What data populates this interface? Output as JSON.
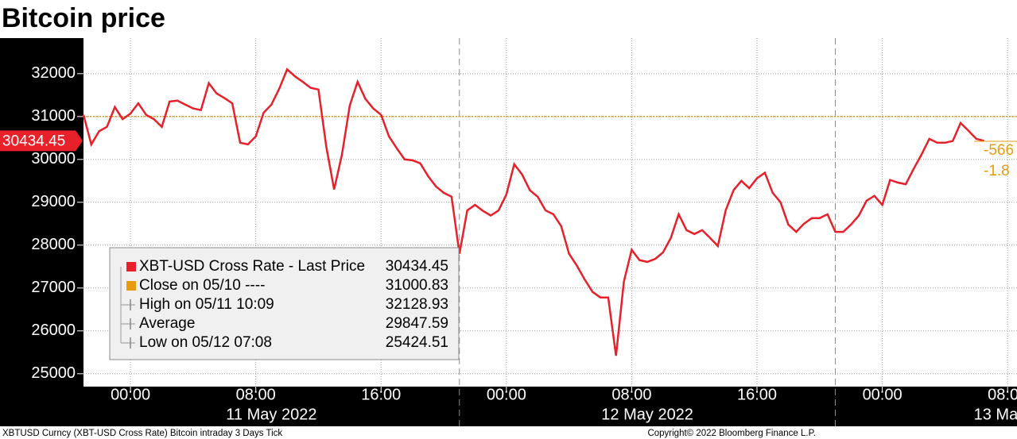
{
  "chart_data": {
    "type": "line",
    "title": "Bitcoin price",
    "x": [
      "05/10 21:00",
      "05/10 21:30",
      "05/10 22:00",
      "05/10 22:30",
      "05/10 23:00",
      "05/10 23:30",
      "05/11 00:00",
      "05/11 00:30",
      "05/11 01:00",
      "05/11 01:30",
      "05/11 02:00",
      "05/11 02:30",
      "05/11 03:00",
      "05/11 03:30",
      "05/11 04:00",
      "05/11 04:30",
      "05/11 05:00",
      "05/11 05:30",
      "05/11 06:00",
      "05/11 06:30",
      "05/11 07:00",
      "05/11 07:30",
      "05/11 08:00",
      "05/11 08:30",
      "05/11 09:00",
      "05/11 09:30",
      "05/11 10:00",
      "05/11 10:30",
      "05/11 11:00",
      "05/11 11:30",
      "05/11 12:00",
      "05/11 12:30",
      "05/11 13:00",
      "05/11 13:30",
      "05/11 14:00",
      "05/11 14:30",
      "05/11 15:00",
      "05/11 15:30",
      "05/11 16:00",
      "05/11 16:30",
      "05/11 17:00",
      "05/11 17:30",
      "05/11 18:00",
      "05/11 18:30",
      "05/11 19:00",
      "05/11 19:30",
      "05/11 20:00",
      "05/11 20:30",
      "05/11 21:00",
      "05/11 21:30",
      "05/11 22:00",
      "05/11 22:30",
      "05/11 23:00",
      "05/11 23:30",
      "05/12 00:00",
      "05/12 00:30",
      "05/12 01:00",
      "05/12 01:30",
      "05/12 02:00",
      "05/12 02:30",
      "05/12 03:00",
      "05/12 03:30",
      "05/12 04:00",
      "05/12 04:30",
      "05/12 05:00",
      "05/12 05:30",
      "05/12 06:00",
      "05/12 06:30",
      "05/12 07:00",
      "05/12 07:30",
      "05/12 08:00",
      "05/12 08:30",
      "05/12 09:00",
      "05/12 09:30",
      "05/12 10:00",
      "05/12 10:30",
      "05/12 11:00",
      "05/12 11:30",
      "05/12 12:00",
      "05/12 12:30",
      "05/12 13:00",
      "05/12 13:30",
      "05/12 14:00",
      "05/12 14:30",
      "05/12 15:00",
      "05/12 15:30",
      "05/12 16:00",
      "05/12 16:30",
      "05/12 17:00",
      "05/12 17:30",
      "05/12 18:00",
      "05/12 18:30",
      "05/12 19:00",
      "05/12 19:30",
      "05/12 20:00",
      "05/12 20:30",
      "05/12 21:00",
      "05/12 21:30",
      "05/12 22:00",
      "05/12 22:30",
      "05/12 23:00",
      "05/12 23:30",
      "05/13 00:00",
      "05/13 00:30",
      "05/13 01:00",
      "05/13 01:30",
      "05/13 02:00",
      "05/13 02:30",
      "05/13 03:00",
      "05/13 03:30",
      "05/13 04:00",
      "05/13 04:30",
      "05/13 05:00",
      "05/13 05:30",
      "05/13 06:00",
      "05/13 06:30"
    ],
    "series": [
      {
        "name": "XBT-USD Cross Rate - Last Price",
        "color": "#e8202a",
        "values": [
          31040,
          30350,
          30660,
          30760,
          31220,
          30940,
          31070,
          31310,
          31040,
          30940,
          30760,
          31350,
          31370,
          31280,
          31190,
          31150,
          31780,
          31540,
          31430,
          31310,
          30390,
          30350,
          30540,
          31090,
          31280,
          31650,
          32100,
          31940,
          31810,
          31670,
          31630,
          30300,
          29300,
          30110,
          31260,
          31810,
          31410,
          31190,
          31040,
          30540,
          30260,
          30000,
          29980,
          29910,
          29610,
          29370,
          29220,
          29130,
          27800,
          28810,
          28940,
          28800,
          28690,
          28810,
          29180,
          29890,
          29650,
          29280,
          29130,
          28810,
          28720,
          28440,
          27800,
          27520,
          27200,
          26910,
          26780,
          26780,
          25420,
          27150,
          27890,
          27650,
          27610,
          27680,
          27830,
          28170,
          28720,
          28350,
          28260,
          28350,
          28170,
          27980,
          28810,
          29280,
          29500,
          29330,
          29560,
          29690,
          29220,
          29000,
          28480,
          28310,
          28500,
          28630,
          28630,
          28720,
          28310,
          28310,
          28480,
          28690,
          29040,
          29150,
          28940,
          29520,
          29460,
          29420,
          29780,
          30110,
          30480,
          30390,
          30390,
          30430,
          30850,
          30670,
          30480,
          30434.45
        ]
      }
    ],
    "reference": {
      "label": "Close on 05/10 ----",
      "value": 31000.83,
      "color": "#e89b10"
    },
    "stats": [
      {
        "label": "High on 05/11 10:09",
        "value": 32128.93
      },
      {
        "label": "Average",
        "value": 29847.59
      },
      {
        "label": "Low on 05/12 07:08",
        "value": 25424.51
      }
    ],
    "change_labels": [
      "-566",
      "-1.8"
    ],
    "xlim": [
      "05/10 21:00",
      "05/13 08:36"
    ],
    "ylim": [
      24700,
      32830
    ],
    "xticks": [
      {
        "value": "05/11 00:00",
        "label": "00:00"
      },
      {
        "value": "05/11 08:00",
        "label": "08:00"
      },
      {
        "value": "05/11 16:00",
        "label": "16:00"
      },
      {
        "value": "05/12 00:00",
        "label": "00:00"
      },
      {
        "value": "05/12 08:00",
        "label": "08:00"
      },
      {
        "value": "05/12 16:00",
        "label": "16:00"
      },
      {
        "value": "05/13 00:00",
        "label": "00:00"
      },
      {
        "value": "05/13 08:00",
        "label": "08:00"
      }
    ],
    "yticks": [
      25000,
      26000,
      27000,
      28000,
      29000,
      30000,
      31000,
      32000
    ],
    "day_labels": [
      {
        "value": "05/11 09:00",
        "label": "11 May 2022"
      },
      {
        "value": "05/12 09:00",
        "label": "12 May 2022"
      },
      {
        "value": "05/13 07:15",
        "label": "13 Ma"
      }
    ],
    "day_breaks": [
      "05/11 21:00",
      "05/12 21:00"
    ],
    "grid": true,
    "footer": {
      "left": "XBTUSD Curncy (XBT-USD Cross Rate) Bitcoin intraday 3 Days  Tick",
      "right": "Copyright© 2022 Bloomberg Finance L.P."
    }
  }
}
